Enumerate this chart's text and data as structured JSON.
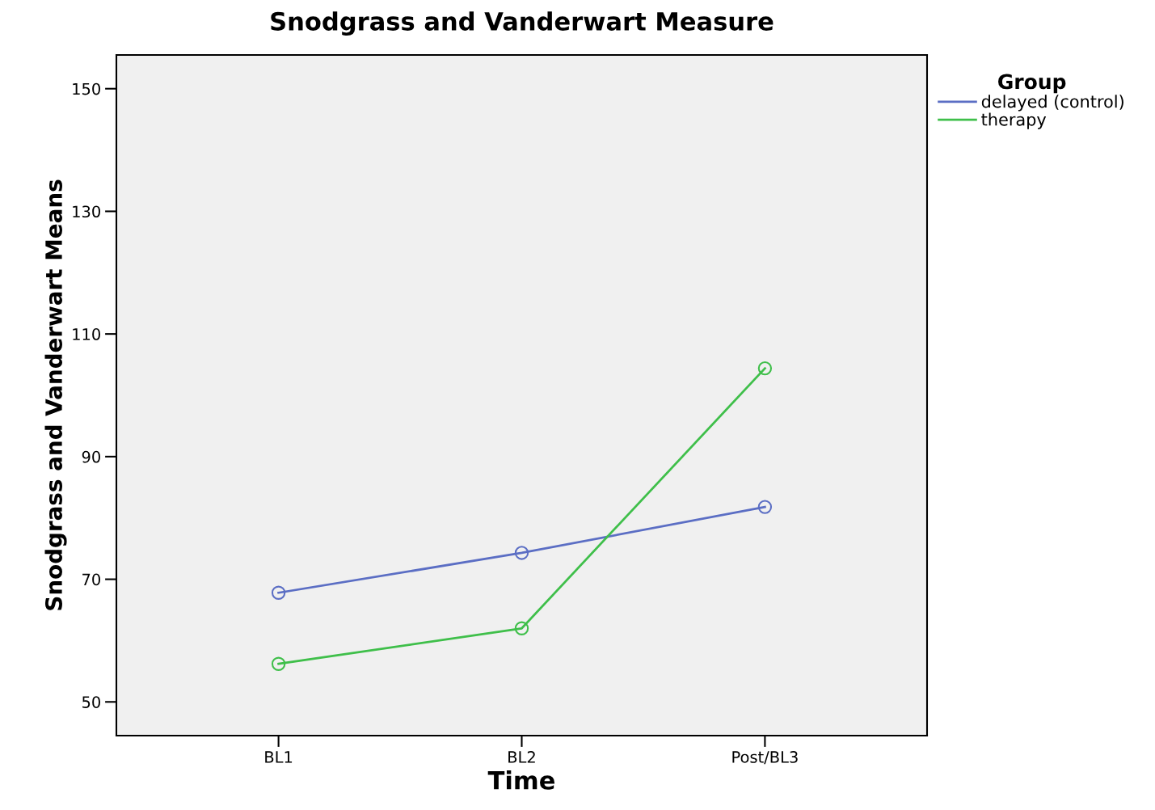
{
  "chart_data": {
    "type": "line",
    "title": "Snodgrass and Vanderwart Measure",
    "xlabel": "Time",
    "ylabel": "Snodgrass and Vanderwart Means",
    "legend_title": "Group",
    "categories": [
      "BL1",
      "BL2",
      "Post/BL3"
    ],
    "series": [
      {
        "name": "delayed (control)",
        "color": "#5b6ec4",
        "values": [
          67.8,
          74.3,
          81.8
        ]
      },
      {
        "name": "therapy",
        "color": "#3fbf4a",
        "values": [
          56.2,
          62.0,
          104.4
        ]
      }
    ],
    "ylim": [
      44.5,
      155.5
    ],
    "yticks": [
      50,
      70,
      90,
      110,
      130,
      150
    ],
    "marker": "circle",
    "line_style": "solid",
    "grid": false,
    "legend": "top right"
  }
}
